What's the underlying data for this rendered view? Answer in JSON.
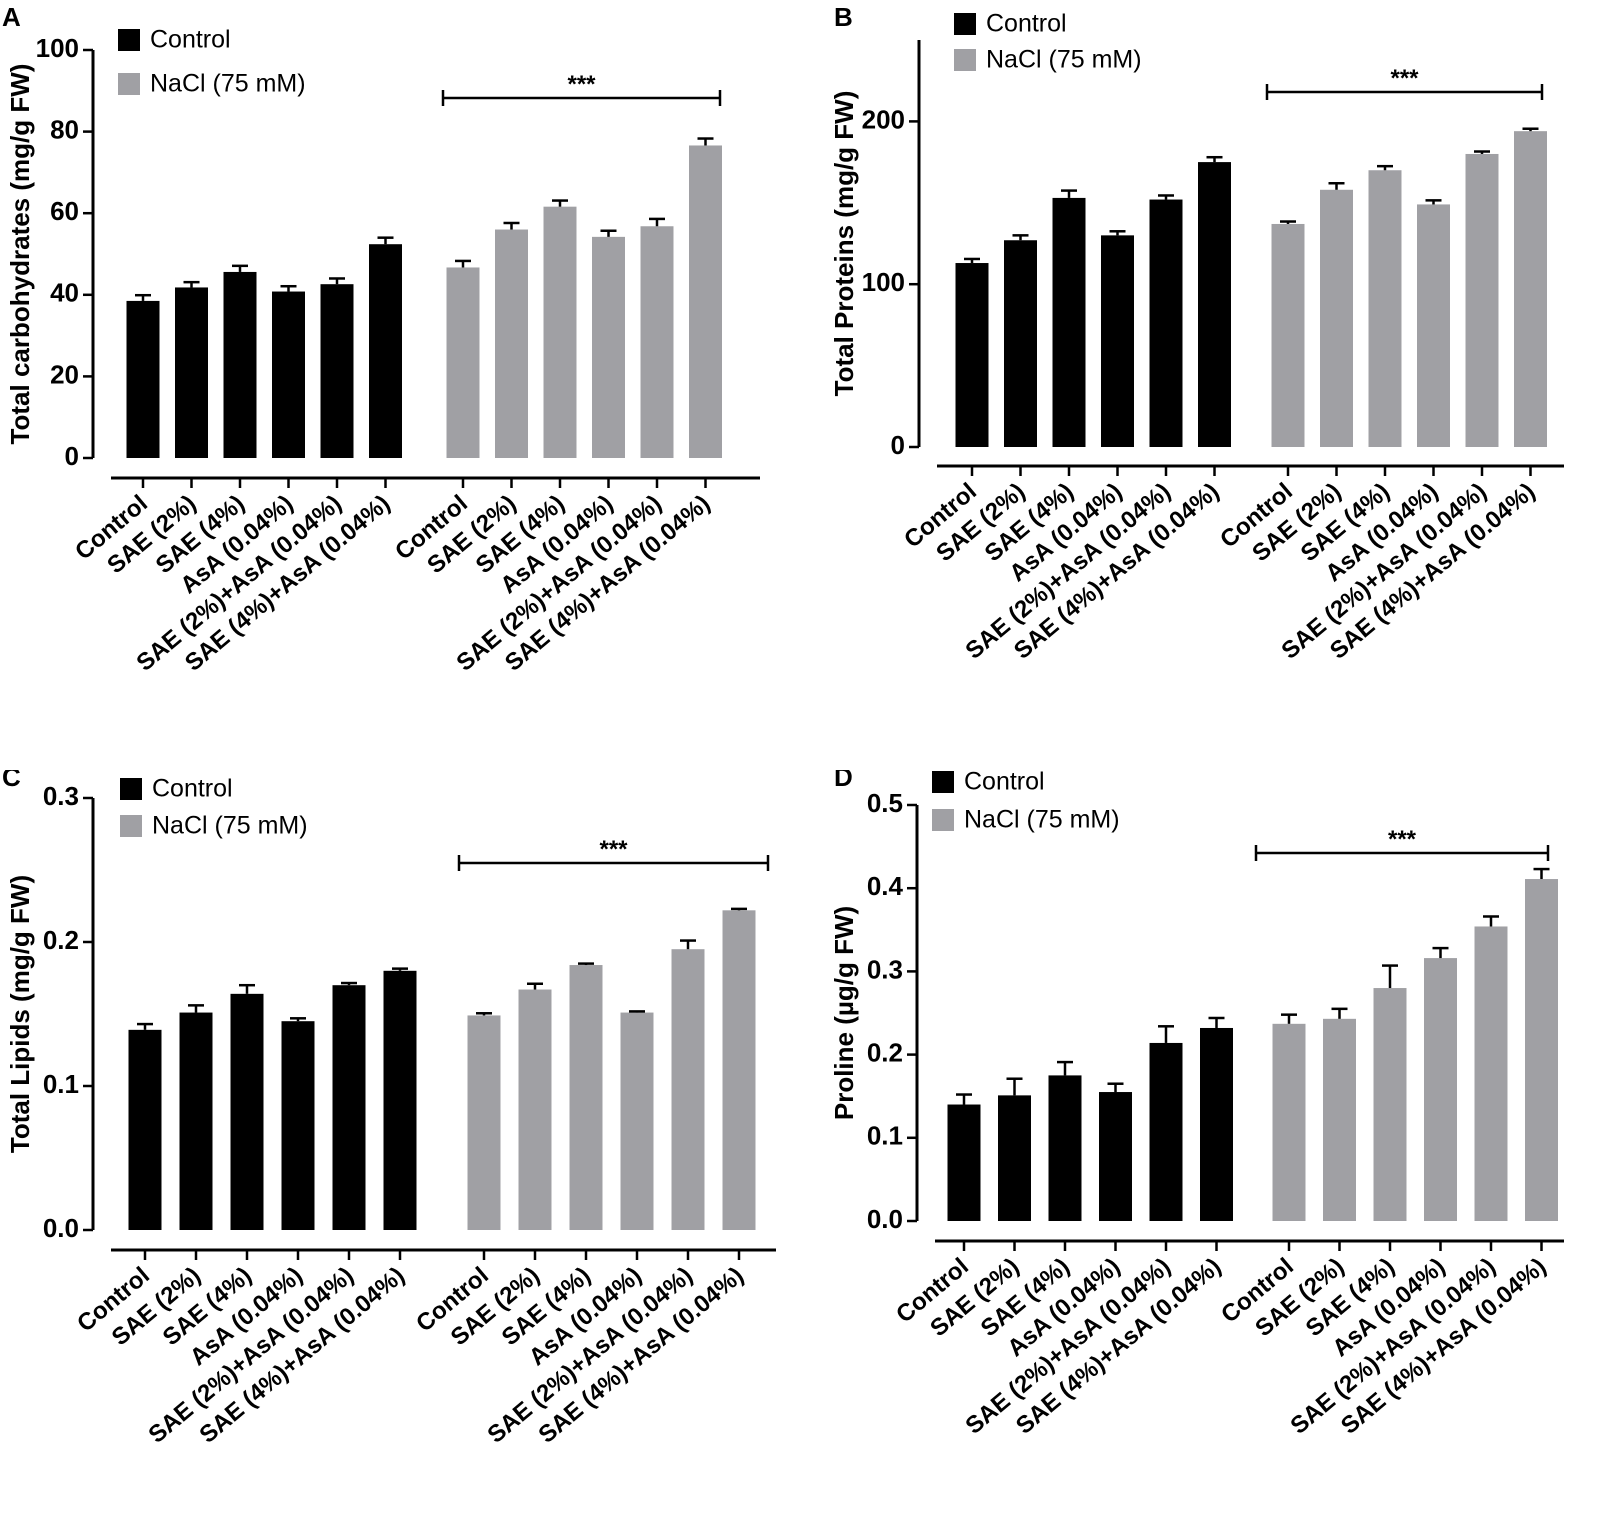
{
  "legend": {
    "series": [
      {
        "name": "Control",
        "color": "#000000"
      },
      {
        "name": "NaCl (75 mM)",
        "color": "#a0a0a4"
      }
    ]
  },
  "chart_data": [
    {
      "panel": "A",
      "type": "bar",
      "ylabel": "Total carbohydrates (mg/g FW)",
      "ylim": [
        0,
        100
      ],
      "yticks": [
        "0",
        "20",
        "40",
        "60",
        "80",
        "100"
      ],
      "categories": [
        "Control",
        "SAE (2%)",
        "SAE (4%)",
        "AsA (0.04%)",
        "SAE (2%)+AsA (0.04%)",
        "SAE (4%)+AsA (0.04%)"
      ],
      "series": [
        {
          "name": "Control",
          "values": [
            38.5,
            41.8,
            45.6,
            40.8,
            42.6,
            52.4
          ],
          "errors": [
            1.4,
            1.3,
            1.5,
            1.3,
            1.4,
            1.6
          ]
        },
        {
          "name": "NaCl (75 mM)",
          "values": [
            46.7,
            56.0,
            61.6,
            54.2,
            56.8,
            76.6
          ],
          "errors": [
            1.6,
            1.6,
            1.5,
            1.5,
            1.8,
            1.7
          ]
        }
      ],
      "significance": "***"
    },
    {
      "panel": "B",
      "type": "bar",
      "ylabel": "Total Proteins (mg/g FW)",
      "ylim": [
        0,
        250
      ],
      "yticks": [
        "0",
        "100",
        "200"
      ],
      "categories": [
        "Control",
        "SAE (2%)",
        "SAE (4%)",
        "AsA (0.04%)",
        "SAE (2%)+AsA (0.04%)",
        "SAE (4%)+AsA (0.04%)"
      ],
      "series": [
        {
          "name": "Control",
          "values": [
            113,
            127,
            153,
            130,
            152,
            175
          ],
          "errors": [
            2.5,
            3,
            4.5,
            2.5,
            2.5,
            3
          ]
        },
        {
          "name": "NaCl (75 mM)",
          "values": [
            137,
            158,
            170,
            149,
            180,
            194
          ],
          "errors": [
            1.5,
            4,
            2.5,
            2.5,
            1.5,
            1.5
          ]
        }
      ],
      "significance": "***"
    },
    {
      "panel": "C",
      "type": "bar",
      "ylabel": "Total Lipids (mg/g FW)",
      "ylim": [
        0,
        0.3
      ],
      "yticks": [
        "0.0",
        "0.1",
        "0.2",
        "0.3"
      ],
      "categories": [
        "Control",
        "SAE (2%)",
        "SAE (4%)",
        "AsA (0.04%)",
        "SAE (2%)+AsA (0.04%)",
        "SAE (4%)+AsA (0.04%)"
      ],
      "series": [
        {
          "name": "Control",
          "values": [
            0.139,
            0.151,
            0.164,
            0.145,
            0.17,
            0.18
          ],
          "errors": [
            0.004,
            0.005,
            0.006,
            0.002,
            0.0015,
            0.0015
          ]
        },
        {
          "name": "NaCl (75 mM)",
          "values": [
            0.149,
            0.167,
            0.184,
            0.151,
            0.195,
            0.222
          ],
          "errors": [
            0.0015,
            0.004,
            0.001,
            0.0008,
            0.006,
            0.001
          ]
        }
      ],
      "significance": "***"
    },
    {
      "panel": "D",
      "type": "bar",
      "ylabel": "Proline (µg/g FW)",
      "ylim": [
        0,
        0.5
      ],
      "yticks": [
        "0.0",
        "0.1",
        "0.2",
        "0.3",
        "0.4",
        "0.5"
      ],
      "categories": [
        "Control",
        "SAE (2%)",
        "SAE (4%)",
        "AsA (0.04%)",
        "SAE (2%)+AsA (0.04%)",
        "SAE (4%)+AsA (0.04%)"
      ],
      "series": [
        {
          "name": "Control",
          "values": [
            0.14,
            0.151,
            0.175,
            0.155,
            0.214,
            0.232
          ],
          "errors": [
            0.012,
            0.02,
            0.016,
            0.01,
            0.02,
            0.012
          ]
        },
        {
          "name": "NaCl (75 mM)",
          "values": [
            0.237,
            0.243,
            0.28,
            0.316,
            0.354,
            0.411
          ],
          "errors": [
            0.011,
            0.012,
            0.027,
            0.012,
            0.012,
            0.012
          ]
        }
      ],
      "significance": "***"
    }
  ]
}
